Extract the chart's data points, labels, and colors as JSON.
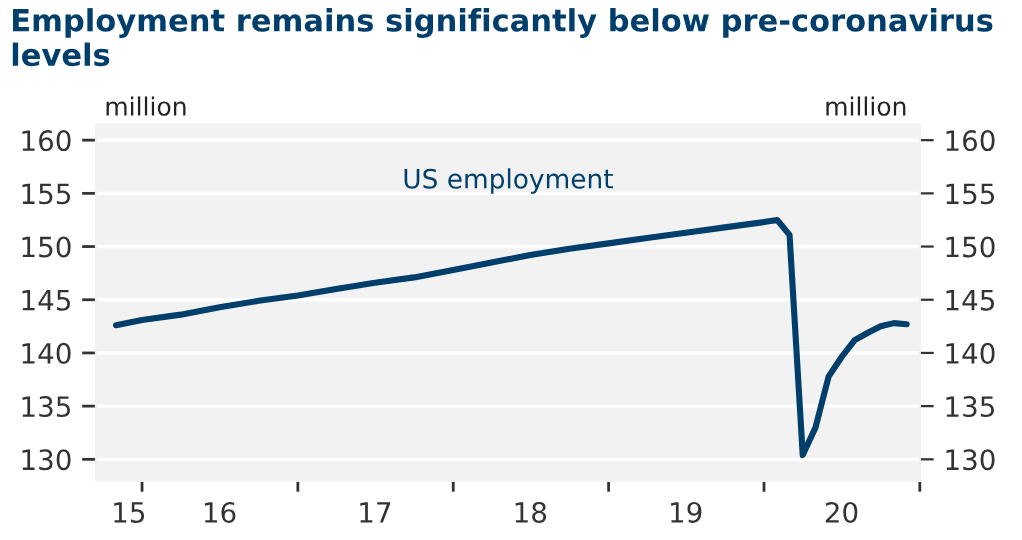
{
  "chart_data": {
    "type": "line",
    "title": "Employment remains significantly below pre-coronavirus levels",
    "x": [
      "2015-11",
      "2016-01",
      "2016-04",
      "2016-07",
      "2016-10",
      "2017-01",
      "2017-04",
      "2017-07",
      "2017-10",
      "2018-01",
      "2018-04",
      "2018-07",
      "2018-10",
      "2019-01",
      "2019-04",
      "2019-07",
      "2019-10",
      "2020-01",
      "2020-02",
      "2020-03",
      "2020-04",
      "2020-05",
      "2020-06",
      "2020-07",
      "2020-08",
      "2020-09",
      "2020-10",
      "2020-11",
      "2020-12"
    ],
    "series": [
      {
        "name": "US employment",
        "color": "#003f6b",
        "values": [
          142.6,
          143.1,
          143.6,
          144.3,
          144.9,
          145.4,
          146.0,
          146.6,
          147.1,
          147.8,
          148.5,
          149.2,
          149.8,
          150.3,
          150.8,
          151.3,
          151.8,
          152.3,
          152.5,
          151.1,
          130.4,
          133.0,
          137.8,
          139.6,
          141.2,
          141.9,
          142.5,
          142.8,
          142.7
        ]
      }
    ],
    "xlim": [
      "2015-09-15",
      "2021-01-01"
    ],
    "xticks": [
      {
        "value": "2015-12",
        "label": "15"
      },
      {
        "value": "2016-01",
        "label": null
      },
      {
        "value": "2016-07",
        "label": "16"
      },
      {
        "value": "2017-01",
        "label": null
      },
      {
        "value": "2017-07",
        "label": "17"
      },
      {
        "value": "2018-01",
        "label": null
      },
      {
        "value": "2018-07",
        "label": "18"
      },
      {
        "value": "2019-01",
        "label": null
      },
      {
        "value": "2019-07",
        "label": "19"
      },
      {
        "value": "2020-01",
        "label": null
      },
      {
        "value": "2020-07",
        "label": "20"
      },
      {
        "value": "2021-01",
        "label": null
      }
    ],
    "ylim": [
      128,
      161.5
    ],
    "yticks": [
      130,
      135,
      140,
      145,
      150,
      155,
      160
    ],
    "y2lim": [
      128,
      161.5
    ],
    "y2ticks": [
      130,
      135,
      140,
      145,
      150,
      155,
      160
    ],
    "ylabel": "million",
    "y2label": "million",
    "grid": "y",
    "legend": false,
    "marker": "none",
    "line_style": "solid"
  }
}
